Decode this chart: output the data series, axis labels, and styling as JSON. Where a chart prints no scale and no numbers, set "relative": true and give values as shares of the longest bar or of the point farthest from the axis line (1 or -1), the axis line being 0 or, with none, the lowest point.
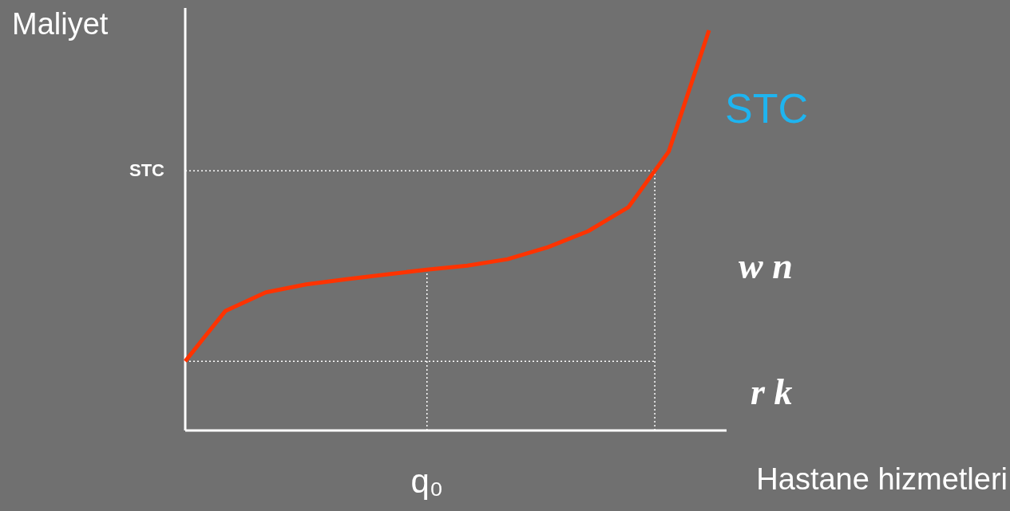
{
  "chart_data": {
    "type": "line",
    "relative": true,
    "xlabel": "Hastane hizmetleri",
    "ylabel": "Maliyet",
    "categories": [
      null,
      null,
      null,
      null,
      null,
      null,
      null,
      null,
      null,
      null,
      null,
      null,
      null,
      null
    ],
    "series": [
      {
        "name": "STC",
        "color": "#ff3300",
        "values": [
          0.173,
          0.299,
          0.345,
          0.365,
          0.378,
          0.39,
          0.402,
          0.412,
          0.428,
          0.458,
          0.498,
          0.558,
          0.697,
          1.0
        ]
      }
    ],
    "ref_lines": [
      {
        "axis": "y",
        "value": 0.649,
        "label": "STC",
        "line_style": "dotted",
        "color": "#ffffff"
      },
      {
        "axis": "y",
        "value": 0.173,
        "line_style": "dotted",
        "color": "#ffffff"
      }
    ],
    "annotations": [
      "w n",
      "r k",
      "q₀"
    ],
    "marker": "none",
    "line_style": "solid"
  }
}
